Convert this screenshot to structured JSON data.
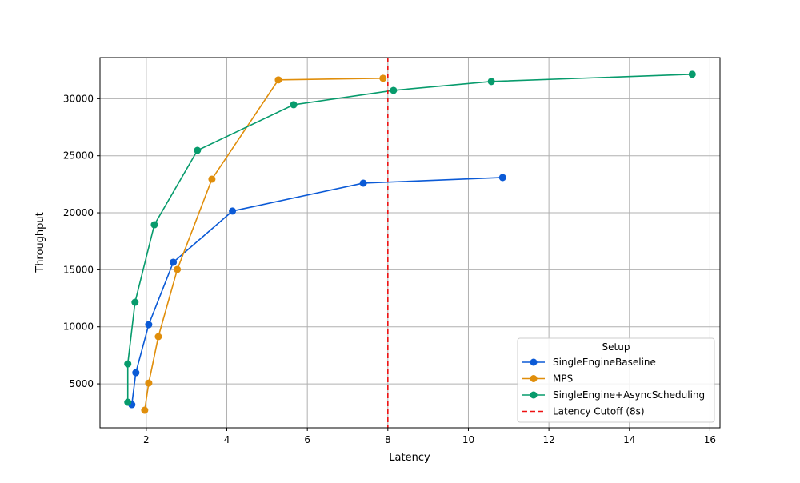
{
  "chart_data": {
    "type": "line",
    "title": "",
    "xlabel": "Latency",
    "ylabel": "Throughput",
    "xlim": [
      0.85,
      16.25
    ],
    "ylim": [
      1150,
      33600
    ],
    "xticks": [
      2,
      4,
      6,
      8,
      10,
      12,
      14,
      16
    ],
    "yticks": [
      5000,
      10000,
      15000,
      20000,
      25000,
      30000
    ],
    "grid": true,
    "legend": {
      "title": "Setup",
      "placement": "lower-right"
    },
    "series": [
      {
        "name": "SingleEngineBaseline",
        "color": "#0b5ad6",
        "marker": "circle",
        "x": [
          1.64,
          1.74,
          2.06,
          2.67,
          4.14,
          7.39,
          10.85
        ],
        "y": [
          3180,
          5980,
          10190,
          15660,
          20150,
          22600,
          23090
        ]
      },
      {
        "name": "MPS",
        "color": "#e08e0b",
        "marker": "circle",
        "x": [
          1.96,
          2.06,
          2.3,
          2.77,
          3.63,
          5.28,
          7.88
        ],
        "y": [
          2690,
          5070,
          9140,
          15030,
          22950,
          31650,
          31790
        ]
      },
      {
        "name": "SingleEngine+AsyncScheduling",
        "color": "#079b6c",
        "marker": "circle",
        "x": [
          1.54,
          1.54,
          1.72,
          2.2,
          3.27,
          5.66,
          8.14,
          10.57,
          15.56
        ],
        "y": [
          3390,
          6750,
          12150,
          18950,
          25470,
          29470,
          30730,
          31510,
          32140
        ]
      }
    ],
    "reference_lines": [
      {
        "name": "Latency Cutoff (8s)",
        "orientation": "vertical",
        "x": 8,
        "color": "#ee1111",
        "style": "dashed"
      }
    ]
  }
}
